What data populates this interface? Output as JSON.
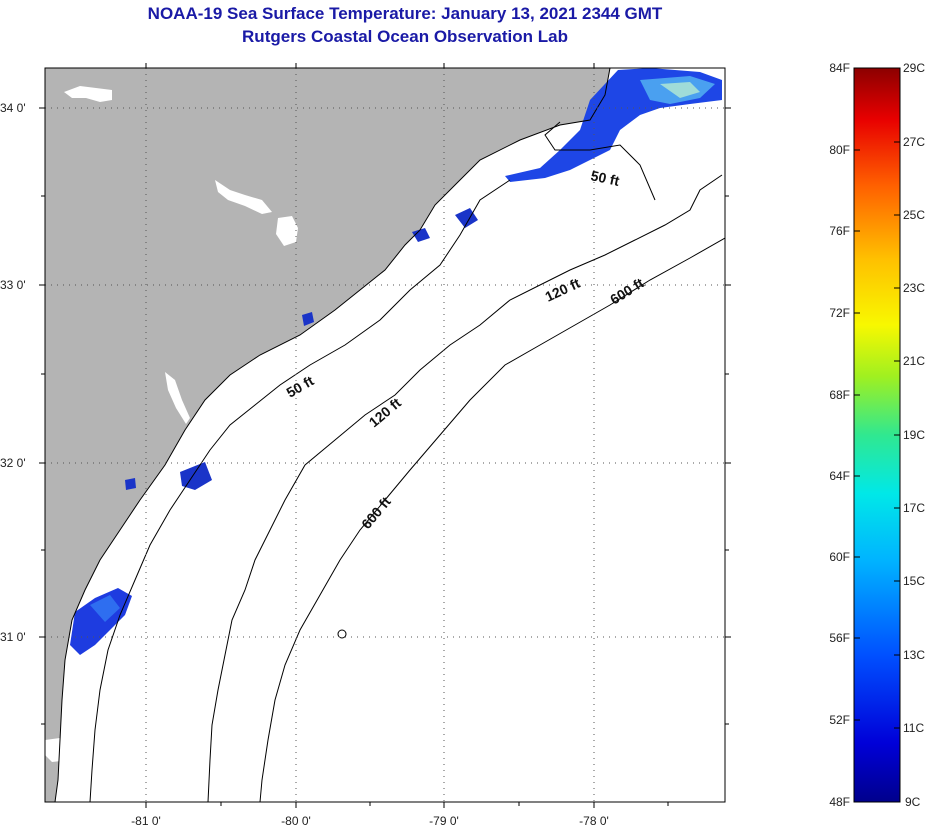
{
  "title": {
    "line1": "NOAA-19 Sea Surface Temperature:  January 13, 2021 2344 GMT",
    "line2": "Rutgers Coastal Ocean Observation Lab"
  },
  "map": {
    "lat_labels": [
      "34 0'",
      "33 0'",
      "32 0'",
      "31 0'"
    ],
    "lon_labels": [
      "-81 0'",
      "-80 0'",
      "-79 0'",
      "-78 0'"
    ],
    "contour_labels": [
      "50 ft",
      "50 ft",
      "120 ft",
      "120 ft",
      "600 ft",
      "600 ft"
    ],
    "colors": {
      "land": "#b4b4b4",
      "ocean": "#ffffff",
      "grid": "#555555"
    }
  },
  "colorbar": {
    "fahrenheit": [
      "84F",
      "80F",
      "76F",
      "72F",
      "68F",
      "64F",
      "60F",
      "56F",
      "52F",
      "48F"
    ],
    "celsius": [
      "29C",
      "27C",
      "25C",
      "23C",
      "21C",
      "19C",
      "17C",
      "15C",
      "13C",
      "11C",
      "9C"
    ]
  }
}
